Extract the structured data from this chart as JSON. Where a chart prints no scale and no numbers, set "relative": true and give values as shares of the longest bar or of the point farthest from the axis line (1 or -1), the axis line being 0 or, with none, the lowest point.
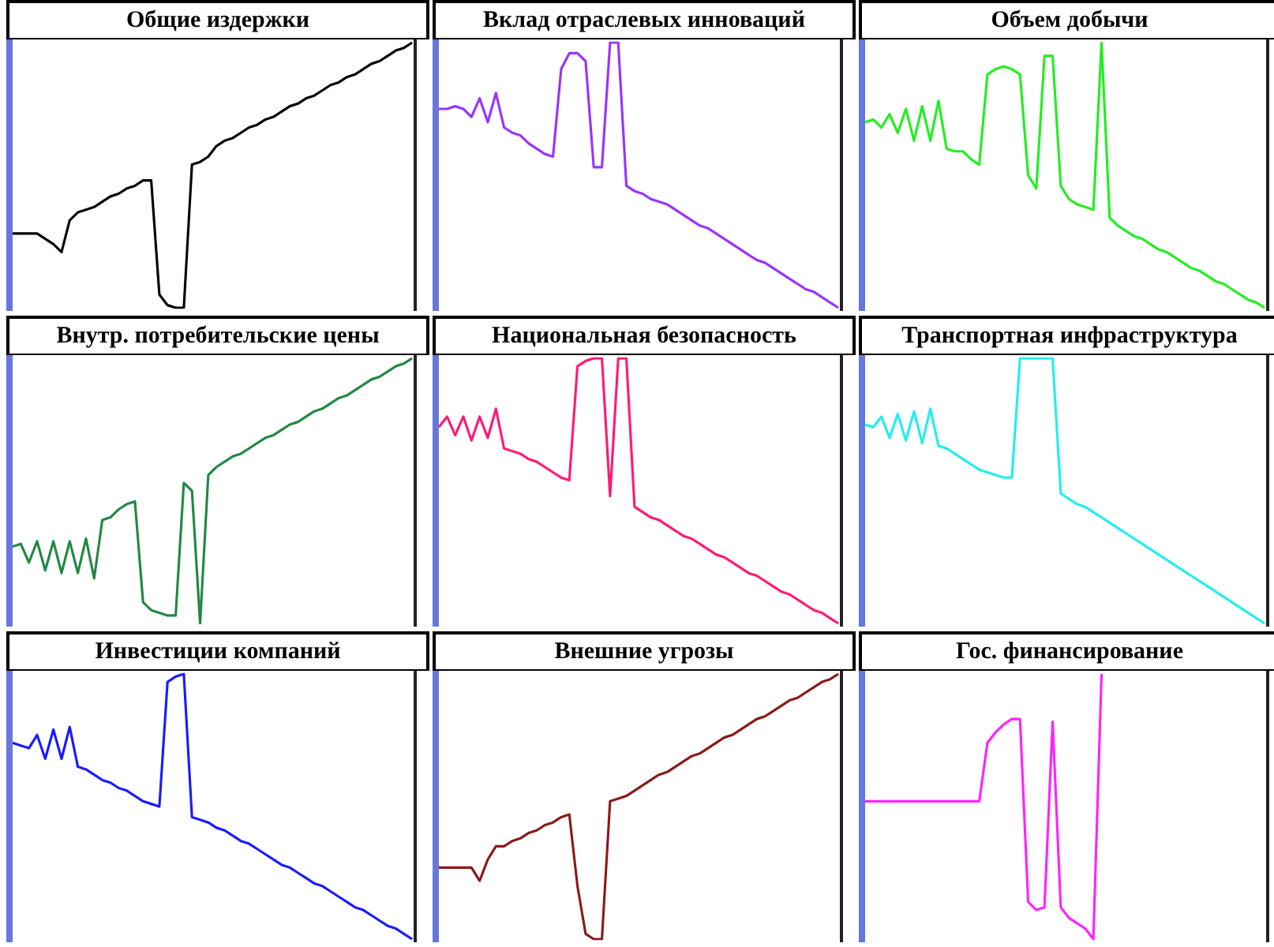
{
  "chart_data": [
    {
      "type": "line",
      "title": "Общие издержки",
      "relative": true,
      "categories": [
        null,
        null,
        null,
        null,
        null,
        null,
        null,
        null,
        null,
        null,
        null,
        null,
        null,
        null,
        null,
        null,
        null,
        null,
        null,
        null,
        null,
        null,
        null,
        null,
        null,
        null,
        null,
        null,
        null,
        null,
        null,
        null,
        null,
        null,
        null,
        null,
        null,
        null,
        null,
        null,
        null,
        null,
        null,
        null,
        null,
        null,
        null,
        null,
        null,
        null
      ],
      "series": [
        {
          "color": "#000000",
          "values": [
            0.28,
            0.28,
            0.28,
            0.28,
            0.26,
            0.24,
            0.21,
            0.33,
            0.36,
            0.37,
            0.38,
            0.4,
            0.42,
            0.43,
            0.45,
            0.46,
            0.48,
            0.48,
            0.05,
            0.01,
            0,
            0,
            0.54,
            0.55,
            0.57,
            0.61,
            0.63,
            0.64,
            0.66,
            0.68,
            0.69,
            0.71,
            0.72,
            0.74,
            0.76,
            0.77,
            0.79,
            0.8,
            0.82,
            0.84,
            0.85,
            0.87,
            0.88,
            0.9,
            0.92,
            0.93,
            0.95,
            0.97,
            0.98,
            1
          ]
        }
      ]
    },
    {
      "type": "line",
      "title": "Вклад отраслевых инноваций",
      "relative": true,
      "categories": [
        null,
        null,
        null,
        null,
        null,
        null,
        null,
        null,
        null,
        null,
        null,
        null,
        null,
        null,
        null,
        null,
        null,
        null,
        null,
        null,
        null,
        null,
        null,
        null,
        null,
        null,
        null,
        null,
        null,
        null,
        null,
        null,
        null,
        null,
        null,
        null,
        null,
        null,
        null,
        null,
        null,
        null,
        null,
        null,
        null,
        null,
        null,
        null,
        null,
        null
      ],
      "series": [
        {
          "color": "#9933ff",
          "values": [
            0.75,
            0.75,
            0.76,
            0.75,
            0.72,
            0.79,
            0.7,
            0.81,
            0.68,
            0.66,
            0.65,
            0.62,
            0.6,
            0.58,
            0.57,
            0.9,
            0.96,
            0.96,
            0.93,
            0.53,
            0.53,
            1,
            1,
            0.46,
            0.44,
            0.43,
            0.41,
            0.4,
            0.39,
            0.37,
            0.35,
            0.33,
            0.31,
            0.3,
            0.28,
            0.26,
            0.24,
            0.22,
            0.2,
            0.18,
            0.17,
            0.15,
            0.13,
            0.11,
            0.09,
            0.07,
            0.06,
            0.04,
            0.02,
            0
          ]
        }
      ]
    },
    {
      "type": "line",
      "title": "Объем добычи",
      "relative": true,
      "categories": [
        null,
        null,
        null,
        null,
        null,
        null,
        null,
        null,
        null,
        null,
        null,
        null,
        null,
        null,
        null,
        null,
        null,
        null,
        null,
        null,
        null,
        null,
        null,
        null,
        null,
        null,
        null,
        null,
        null,
        null,
        null,
        null,
        null,
        null,
        null,
        null,
        null,
        null,
        null,
        null,
        null,
        null,
        null,
        null,
        null,
        null,
        null,
        null,
        null,
        null
      ],
      "series": [
        {
          "color": "#22ee22",
          "values": [
            0.7,
            0.71,
            0.68,
            0.73,
            0.66,
            0.75,
            0.63,
            0.76,
            0.63,
            0.78,
            0.6,
            0.59,
            0.59,
            0.56,
            0.54,
            0.88,
            0.9,
            0.91,
            0.9,
            0.88,
            0.5,
            0.45,
            0.95,
            0.95,
            0.46,
            0.41,
            0.39,
            0.38,
            0.37,
            1,
            0.34,
            0.31,
            0.29,
            0.27,
            0.26,
            0.24,
            0.22,
            0.21,
            0.19,
            0.17,
            0.15,
            0.14,
            0.12,
            0.1,
            0.09,
            0.07,
            0.05,
            0.03,
            0.02,
            0
          ]
        }
      ]
    },
    {
      "type": "line",
      "title": "Внутр. потребительские цены",
      "relative": true,
      "categories": [
        null,
        null,
        null,
        null,
        null,
        null,
        null,
        null,
        null,
        null,
        null,
        null,
        null,
        null,
        null,
        null,
        null,
        null,
        null,
        null,
        null,
        null,
        null,
        null,
        null,
        null,
        null,
        null,
        null,
        null,
        null,
        null,
        null,
        null,
        null,
        null,
        null,
        null,
        null,
        null,
        null,
        null,
        null,
        null,
        null,
        null,
        null,
        null,
        null,
        null
      ],
      "series": [
        {
          "color": "#228844",
          "values": [
            0.29,
            0.3,
            0.23,
            0.31,
            0.2,
            0.31,
            0.19,
            0.31,
            0.19,
            0.32,
            0.17,
            0.39,
            0.4,
            0.43,
            0.45,
            0.46,
            0.08,
            0.05,
            0.04,
            0.03,
            0.03,
            0.53,
            0.5,
            0,
            0.56,
            0.59,
            0.61,
            0.63,
            0.64,
            0.66,
            0.68,
            0.7,
            0.71,
            0.73,
            0.75,
            0.76,
            0.78,
            0.8,
            0.81,
            0.83,
            0.85,
            0.86,
            0.88,
            0.9,
            0.92,
            0.93,
            0.95,
            0.97,
            0.98,
            1
          ]
        }
      ]
    },
    {
      "type": "line",
      "title": "Национальная безопасность",
      "relative": true,
      "categories": [
        null,
        null,
        null,
        null,
        null,
        null,
        null,
        null,
        null,
        null,
        null,
        null,
        null,
        null,
        null,
        null,
        null,
        null,
        null,
        null,
        null,
        null,
        null,
        null,
        null,
        null,
        null,
        null,
        null,
        null,
        null,
        null,
        null,
        null,
        null,
        null,
        null,
        null,
        null,
        null,
        null,
        null,
        null,
        null,
        null,
        null,
        null,
        null,
        null,
        null
      ],
      "series": [
        {
          "color": "#ff1a75",
          "values": [
            0.74,
            0.78,
            0.71,
            0.78,
            0.69,
            0.78,
            0.7,
            0.81,
            0.66,
            0.65,
            0.64,
            0.62,
            0.61,
            0.59,
            0.57,
            0.55,
            0.54,
            0.97,
            0.99,
            1,
            1,
            0.48,
            1,
            1,
            0.44,
            0.42,
            0.4,
            0.39,
            0.37,
            0.35,
            0.33,
            0.32,
            0.3,
            0.28,
            0.26,
            0.25,
            0.23,
            0.21,
            0.19,
            0.18,
            0.16,
            0.14,
            0.12,
            0.11,
            0.09,
            0.07,
            0.05,
            0.04,
            0.02,
            0
          ]
        }
      ]
    },
    {
      "type": "line",
      "title": "Транспортная инфраструктура",
      "relative": true,
      "categories": [
        null,
        null,
        null,
        null,
        null,
        null,
        null,
        null,
        null,
        null,
        null,
        null,
        null,
        null,
        null,
        null,
        null,
        null,
        null,
        null,
        null,
        null,
        null,
        null,
        null,
        null,
        null,
        null,
        null,
        null,
        null,
        null,
        null,
        null,
        null,
        null,
        null,
        null,
        null,
        null,
        null,
        null,
        null,
        null,
        null,
        null,
        null,
        null,
        null,
        null
      ],
      "series": [
        {
          "color": "#22eeee",
          "values": [
            0.75,
            0.74,
            0.78,
            0.7,
            0.79,
            0.69,
            0.8,
            0.68,
            0.81,
            0.67,
            0.66,
            0.64,
            0.62,
            0.6,
            0.58,
            0.57,
            0.56,
            0.55,
            0.55,
            1,
            1,
            1,
            1,
            1,
            0.49,
            0.47,
            0.45,
            0.44,
            0.42,
            0.4,
            0.38,
            0.36,
            0.34,
            0.32,
            0.3,
            0.28,
            0.26,
            0.24,
            0.22,
            0.2,
            0.18,
            0.16,
            0.14,
            0.12,
            0.1,
            0.08,
            0.06,
            0.04,
            0.02,
            0
          ]
        }
      ]
    },
    {
      "type": "line",
      "title": "Инвестиции компаний",
      "relative": true,
      "categories": [
        null,
        null,
        null,
        null,
        null,
        null,
        null,
        null,
        null,
        null,
        null,
        null,
        null,
        null,
        null,
        null,
        null,
        null,
        null,
        null,
        null,
        null,
        null,
        null,
        null,
        null,
        null,
        null,
        null,
        null,
        null,
        null,
        null,
        null,
        null,
        null,
        null,
        null,
        null,
        null,
        null,
        null,
        null,
        null,
        null,
        null,
        null,
        null,
        null,
        null
      ],
      "series": [
        {
          "color": "#1a1aff",
          "values": [
            0.74,
            0.73,
            0.72,
            0.77,
            0.68,
            0.79,
            0.68,
            0.8,
            0.65,
            0.64,
            0.62,
            0.6,
            0.59,
            0.57,
            0.56,
            0.54,
            0.52,
            0.51,
            0.5,
            0.97,
            0.99,
            1,
            0.46,
            0.45,
            0.44,
            0.42,
            0.41,
            0.39,
            0.37,
            0.36,
            0.34,
            0.32,
            0.3,
            0.28,
            0.27,
            0.25,
            0.23,
            0.21,
            0.2,
            0.18,
            0.16,
            0.14,
            0.12,
            0.11,
            0.09,
            0.07,
            0.05,
            0.04,
            0.02,
            0
          ]
        }
      ]
    },
    {
      "type": "line",
      "title": "Внешние угрозы",
      "relative": true,
      "categories": [
        null,
        null,
        null,
        null,
        null,
        null,
        null,
        null,
        null,
        null,
        null,
        null,
        null,
        null,
        null,
        null,
        null,
        null,
        null,
        null,
        null,
        null,
        null,
        null,
        null,
        null,
        null,
        null,
        null,
        null,
        null,
        null,
        null,
        null,
        null,
        null,
        null,
        null,
        null,
        null,
        null,
        null,
        null,
        null,
        null,
        null,
        null,
        null,
        null,
        null
      ],
      "series": [
        {
          "color": "#8b1a1a",
          "values": [
            0.27,
            0.27,
            0.27,
            0.27,
            0.27,
            0.22,
            0.3,
            0.35,
            0.35,
            0.37,
            0.38,
            0.4,
            0.41,
            0.43,
            0.44,
            0.46,
            0.47,
            0.2,
            0.02,
            0,
            0,
            0.52,
            0.53,
            0.54,
            0.56,
            0.58,
            0.6,
            0.62,
            0.63,
            0.65,
            0.67,
            0.69,
            0.7,
            0.72,
            0.74,
            0.76,
            0.77,
            0.79,
            0.81,
            0.83,
            0.84,
            0.86,
            0.88,
            0.9,
            0.91,
            0.93,
            0.95,
            0.97,
            0.98,
            1
          ]
        }
      ]
    },
    {
      "type": "line",
      "title": "Гос. финансирование",
      "relative": true,
      "categories": [
        null,
        null,
        null,
        null,
        null,
        null,
        null,
        null,
        null,
        null,
        null,
        null,
        null,
        null,
        null,
        null,
        null,
        null,
        null,
        null,
        null,
        null,
        null,
        null,
        null,
        null,
        null,
        null,
        null,
        null,
        null,
        null,
        null,
        null,
        null,
        null,
        null,
        null,
        null,
        null,
        null,
        null,
        null,
        null,
        null,
        null,
        null,
        null,
        null,
        null
      ],
      "series": [
        {
          "color": "#ff22ff",
          "values": [
            0.52,
            0.52,
            0.52,
            0.52,
            0.52,
            0.52,
            0.52,
            0.52,
            0.52,
            0.52,
            0.52,
            0.52,
            0.52,
            0.52,
            0.52,
            0.74,
            0.78,
            0.81,
            0.83,
            0.83,
            0.14,
            0.11,
            0.12,
            0.82,
            0.12,
            0.08,
            0.06,
            0.04,
            0,
            1,
            null,
            null,
            null,
            null,
            null,
            null,
            null,
            null,
            null,
            null,
            null,
            null,
            null,
            null,
            null,
            null,
            null,
            null,
            null,
            null
          ]
        }
      ]
    }
  ]
}
